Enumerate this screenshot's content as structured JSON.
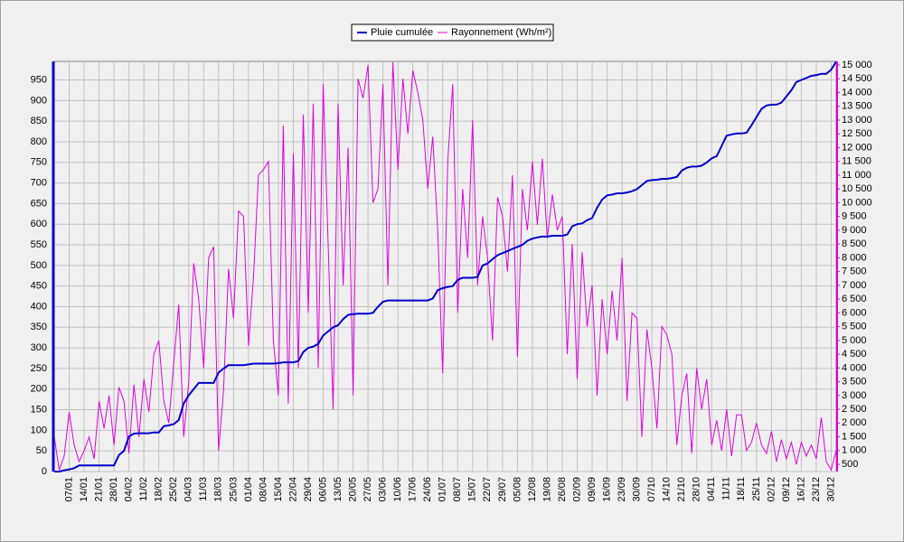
{
  "chart_data": {
    "type": "line",
    "categories": [
      null,
      null,
      null,
      "07/01",
      null,
      null,
      "14/01",
      null,
      null,
      "21/01",
      null,
      null,
      "28/01",
      null,
      null,
      "04/02",
      null,
      null,
      "11/02",
      null,
      null,
      "18/02",
      null,
      null,
      "25/02",
      null,
      null,
      "04/03",
      null,
      null,
      "11/03",
      null,
      null,
      "18/03",
      null,
      null,
      "25/03",
      null,
      null,
      "01/04",
      null,
      null,
      "08/04",
      null,
      null,
      "15/04",
      null,
      null,
      "22/04",
      null,
      null,
      "29/04",
      null,
      null,
      "06/05",
      null,
      null,
      "13/05",
      null,
      null,
      "20/05",
      null,
      null,
      "27/05",
      null,
      null,
      "03/06",
      null,
      null,
      "10/06",
      null,
      null,
      "17/06",
      null,
      null,
      "24/06",
      null,
      null,
      "01/07",
      null,
      null,
      "08/07",
      null,
      null,
      "15/07",
      null,
      null,
      "22/07",
      null,
      null,
      "29/07",
      null,
      null,
      "05/08",
      null,
      null,
      "12/08",
      null,
      null,
      "19/08",
      null,
      null,
      "26/08",
      null,
      null,
      "02/09",
      null,
      null,
      "09/09",
      null,
      null,
      "16/09",
      null,
      null,
      "23/09",
      null,
      null,
      "30/09",
      null,
      null,
      "07/10",
      null,
      null,
      "14/10",
      null,
      null,
      "21/10",
      null,
      null,
      "28/10",
      null,
      null,
      "04/11",
      null,
      null,
      "11/11",
      null,
      null,
      "18/11",
      null,
      null,
      "25/11",
      null,
      null,
      "02/12",
      null,
      null,
      "09/12",
      null,
      null,
      "16/12",
      null,
      null,
      "23/12",
      null,
      null,
      "30/12",
      null
    ],
    "series": [
      {
        "name": "Pluie cumulée",
        "color": "#0000cc",
        "values": [
          0,
          0,
          3,
          5,
          8,
          15,
          15,
          15,
          15,
          15,
          15,
          15,
          15,
          40,
          50,
          85,
          92,
          93,
          93,
          93,
          95,
          95,
          110,
          112,
          115,
          125,
          165,
          185,
          200,
          215,
          215,
          215,
          215,
          240,
          250,
          258,
          258,
          258,
          258,
          260,
          262,
          262,
          262,
          262,
          262,
          263,
          265,
          265,
          265,
          268,
          290,
          300,
          303,
          310,
          330,
          340,
          350,
          355,
          370,
          380,
          382,
          383,
          383,
          383,
          385,
          400,
          412,
          415,
          415,
          415,
          415,
          415,
          415,
          415,
          415,
          415,
          420,
          440,
          445,
          448,
          450,
          465,
          470,
          470,
          470,
          472,
          500,
          505,
          515,
          525,
          530,
          535,
          540,
          545,
          550,
          560,
          565,
          568,
          570,
          570,
          572,
          572,
          572,
          575,
          595,
          600,
          602,
          610,
          615,
          640,
          660,
          670,
          672,
          675,
          675,
          677,
          680,
          685,
          695,
          705,
          707,
          708,
          710,
          710,
          712,
          715,
          730,
          737,
          740,
          740,
          742,
          750,
          760,
          765,
          790,
          815,
          818,
          820,
          820,
          822,
          840,
          860,
          880,
          888,
          890,
          890,
          895,
          910,
          925,
          945,
          950,
          955,
          960,
          962,
          965,
          965,
          975,
          995
        ]
      },
      {
        "name": "Rayonnement (Wh/m²)",
        "color": "#e000e0",
        "axis": "y2",
        "values": [
          1500,
          300,
          800,
          2400,
          1200,
          600,
          1000,
          1500,
          700,
          2800,
          1800,
          3000,
          1200,
          3300,
          2800,
          900,
          3400,
          1500,
          3600,
          2400,
          4500,
          5000,
          2800,
          2000,
          4200,
          6300,
          1500,
          3500,
          7800,
          6500,
          4000,
          8000,
          8400,
          1000,
          3200,
          7600,
          5800,
          9700,
          9500,
          4800,
          7300,
          11000,
          11200,
          11500,
          5000,
          3000,
          12800,
          2700,
          11800,
          4000,
          13200,
          6000,
          13600,
          4000,
          14300,
          8500,
          2500,
          13600,
          7000,
          12000,
          3000,
          14500,
          13800,
          15000,
          10000,
          10500,
          14300,
          7000,
          15100,
          11200,
          14500,
          12500,
          14800,
          14000,
          13000,
          10500,
          12400,
          9000,
          3800,
          11500,
          14300,
          6000,
          10500,
          8000,
          13000,
          7000,
          9500,
          8000,
          5000,
          10200,
          9500,
          7500,
          11000,
          4400,
          10500,
          9000,
          11500,
          9200,
          11600,
          8700,
          10300,
          9000,
          9500,
          4500,
          8500,
          3600,
          8200,
          5500,
          7000,
          3000,
          6500,
          4500,
          6800,
          5000,
          8000,
          2800,
          6000,
          5800,
          1500,
          5400,
          4000,
          1800,
          5500,
          5200,
          4500,
          1200,
          3000,
          3800,
          900,
          4000,
          2500,
          3600,
          1200,
          2100,
          1000,
          2500,
          800,
          2300,
          2300,
          1000,
          1300,
          2000,
          1200,
          900,
          1700,
          600,
          1400,
          700,
          1300,
          500,
          1300,
          800,
          1200,
          700,
          2200,
          600,
          300,
          1000
        ]
      }
    ],
    "ylim": [
      0,
      995
    ],
    "yticks": [
      0,
      50,
      100,
      150,
      200,
      250,
      300,
      350,
      400,
      450,
      500,
      550,
      600,
      650,
      700,
      750,
      800,
      850,
      900,
      950
    ],
    "y2lim": [
      240,
      15130
    ],
    "y2ticks": [
      500,
      {
        "value": 1000,
        "label": "1 000"
      },
      {
        "value": 1500,
        "label": "1 500"
      },
      {
        "value": 2000,
        "label": "2 000"
      },
      {
        "value": 2500,
        "label": "2 500"
      },
      {
        "value": 3000,
        "label": "3 000"
      },
      {
        "value": 3500,
        "label": "3 500"
      },
      {
        "value": 4000,
        "label": "4 000"
      },
      {
        "value": 4500,
        "label": "4 500"
      },
      {
        "value": 5000,
        "label": "5 000"
      },
      {
        "value": 5500,
        "label": "5 500"
      },
      {
        "value": 6000,
        "label": "6 000"
      },
      {
        "value": 6500,
        "label": "6 500"
      },
      {
        "value": 7000,
        "label": "7 000"
      },
      {
        "value": 7500,
        "label": "7 500"
      },
      {
        "value": 8000,
        "label": "8 000"
      },
      {
        "value": 8500,
        "label": "8 500"
      },
      {
        "value": 9000,
        "label": "9 000"
      },
      {
        "value": 9500,
        "label": "9 500"
      },
      {
        "value": 10000,
        "label": "10 000"
      },
      {
        "value": 10500,
        "label": "10 500"
      },
      {
        "value": 11000,
        "label": "11 000"
      },
      {
        "value": 11500,
        "label": "11 500"
      },
      {
        "value": 12000,
        "label": "12 000"
      },
      {
        "value": 12500,
        "label": "12 500"
      },
      {
        "value": 13000,
        "label": "13 000"
      },
      {
        "value": 13500,
        "label": "13 500"
      },
      {
        "value": 14000,
        "label": "14 000"
      },
      {
        "value": 14500,
        "label": "14 500"
      },
      {
        "value": 15000,
        "label": "15 000"
      }
    ],
    "grid": true,
    "legend": "top"
  }
}
